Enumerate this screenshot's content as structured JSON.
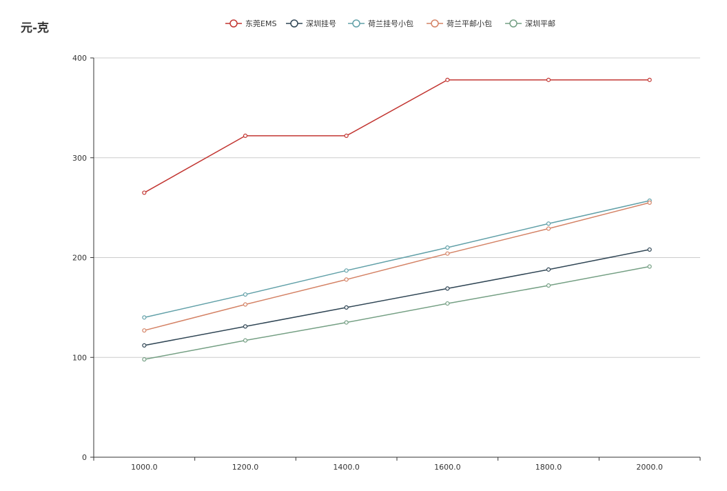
{
  "title": "元-克",
  "chart_data": {
    "type": "line",
    "x": [
      "1000.0",
      "1200.0",
      "1400.0",
      "1600.0",
      "1800.0",
      "2000.0"
    ],
    "ylim": [
      0,
      400
    ],
    "yticks": [
      0,
      100,
      200,
      300,
      400
    ],
    "grid": true,
    "legend_position": "top-center",
    "series": [
      {
        "name": "东莞EMS",
        "color": "#c23531",
        "values": [
          265,
          322,
          322,
          378,
          378,
          378
        ]
      },
      {
        "name": "深圳挂号",
        "color": "#2f4554",
        "values": [
          112,
          131,
          150,
          169,
          188,
          208
        ]
      },
      {
        "name": "荷兰挂号小包",
        "color": "#61a0a8",
        "values": [
          140,
          163,
          187,
          210,
          234,
          257
        ]
      },
      {
        "name": "荷兰平邮小包",
        "color": "#d48265",
        "values": [
          127,
          153,
          178,
          204,
          229,
          255
        ]
      },
      {
        "name": "深圳平邮",
        "color": "#749f83",
        "values": [
          98,
          117,
          135,
          154,
          172,
          191
        ]
      }
    ]
  }
}
